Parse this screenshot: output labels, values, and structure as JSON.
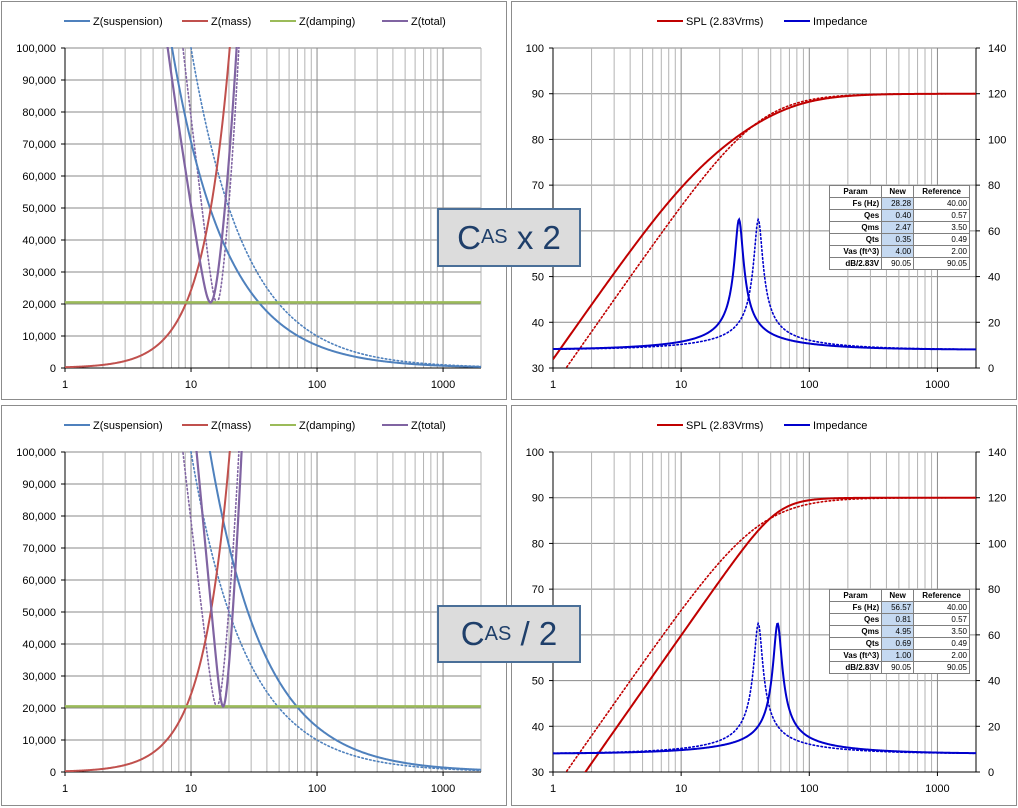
{
  "callouts": {
    "top": {
      "main": "C",
      "sub": "AS",
      "suffix": " x 2"
    },
    "bottom": {
      "main": "C",
      "sub": "AS",
      "suffix": " / 2"
    }
  },
  "tables": {
    "header": [
      "Param",
      "New",
      "Reference"
    ],
    "top": [
      [
        "Fs (Hz)",
        "28.28",
        "40.00"
      ],
      [
        "Qes",
        "0.40",
        "0.57"
      ],
      [
        "Qms",
        "2.47",
        "3.50"
      ],
      [
        "Qts",
        "0.35",
        "0.49"
      ],
      [
        "Vas (ft^3)",
        "4.00",
        "2.00"
      ],
      [
        "dB/2.83V",
        "90.05",
        "90.05"
      ]
    ],
    "bottom": [
      [
        "Fs (Hz)",
        "56.57",
        "40.00"
      ],
      [
        "Qes",
        "0.81",
        "0.57"
      ],
      [
        "Qms",
        "4.95",
        "3.50"
      ],
      [
        "Qts",
        "0.69",
        "0.49"
      ],
      [
        "Vas (ft^3)",
        "1.00",
        "2.00"
      ],
      [
        "dB/2.83V",
        "90.05",
        "90.05"
      ]
    ]
  },
  "chart_data": [
    {
      "type": "line",
      "panel": "impedance-top",
      "xscale": "log",
      "xlim": [
        1,
        2000
      ],
      "ylim": [
        0,
        100000
      ],
      "x_ticks": [
        "1",
        "10",
        "100",
        "1000"
      ],
      "y_ticks": [
        "0",
        "10,000",
        "20,000",
        "30,000",
        "40,000",
        "50,000",
        "60,000",
        "70,000",
        "80,000",
        "90,000",
        "100,000"
      ],
      "legend": [
        "Z(suspension)",
        "Z(mass)",
        "Z(damping)",
        "Z(total)"
      ],
      "legend_position": "top",
      "grid": true,
      "colors": {
        "suspension": "#4f81bd",
        "mass": "#c0504d",
        "damping": "#9bbb59",
        "total": "#8064a2"
      },
      "model": {
        "ks_new": 707000,
        "ks_ref": 1000000,
        "km": 243,
        "damping": 20500
      },
      "reference_style": "dotted"
    },
    {
      "type": "line",
      "panel": "spl-top",
      "xscale": "log",
      "xlim": [
        1,
        2000
      ],
      "ylim_left": [
        30,
        100
      ],
      "ylim_right": [
        0,
        140
      ],
      "x_ticks": [
        "1",
        "10",
        "100",
        "1000"
      ],
      "y_ticks_left": [
        "30",
        "40",
        "50",
        "60",
        "70",
        "80",
        "90",
        "100"
      ],
      "y_ticks_right": [
        "0",
        "20",
        "40",
        "60",
        "80",
        "100",
        "120",
        "140"
      ],
      "legend": [
        "SPL (2.83Vrms)",
        "Impedance"
      ],
      "legend_position": "top",
      "grid": true,
      "colors": {
        "spl": "#c00000",
        "impedance": "#0000cc"
      },
      "new": {
        "fs": 28.28,
        "qts": 0.35,
        "imp_base": 8,
        "imp_peak": 57
      },
      "reference": {
        "fs": 40.0,
        "qts": 0.49,
        "imp_base": 8,
        "imp_peak": 57
      },
      "spl_plateau": 90,
      "reference_style": "dotted"
    },
    {
      "type": "line",
      "panel": "impedance-bottom",
      "xscale": "log",
      "xlim": [
        1,
        2000
      ],
      "ylim": [
        0,
        100000
      ],
      "x_ticks": [
        "1",
        "10",
        "100",
        "1000"
      ],
      "y_ticks": [
        "0",
        "10,000",
        "20,000",
        "30,000",
        "40,000",
        "50,000",
        "60,000",
        "70,000",
        "80,000",
        "90,000",
        "100,000"
      ],
      "legend": [
        "Z(suspension)",
        "Z(mass)",
        "Z(damping)",
        "Z(total)"
      ],
      "legend_position": "top",
      "grid": true,
      "colors": {
        "suspension": "#4f81bd",
        "mass": "#c0504d",
        "damping": "#9bbb59",
        "total": "#8064a2"
      },
      "model": {
        "ks_new": 1414000,
        "ks_ref": 1000000,
        "km": 243,
        "damping": 20500
      },
      "reference_style": "dotted"
    },
    {
      "type": "line",
      "panel": "spl-bottom",
      "xscale": "log",
      "xlim": [
        1,
        2000
      ],
      "ylim_left": [
        30,
        100
      ],
      "ylim_right": [
        0,
        140
      ],
      "x_ticks": [
        "1",
        "10",
        "100",
        "1000"
      ],
      "y_ticks_left": [
        "30",
        "40",
        "50",
        "60",
        "70",
        "80",
        "90",
        "100"
      ],
      "y_ticks_right": [
        "0",
        "20",
        "40",
        "60",
        "80",
        "100",
        "120",
        "140"
      ],
      "legend": [
        "SPL (2.83Vrms)",
        "Impedance"
      ],
      "legend_position": "top",
      "grid": true,
      "colors": {
        "spl": "#c00000",
        "impedance": "#0000cc"
      },
      "new": {
        "fs": 56.57,
        "qts": 0.69,
        "imp_base": 8,
        "imp_peak": 57
      },
      "reference": {
        "fs": 40.0,
        "qts": 0.49,
        "imp_base": 8,
        "imp_peak": 57
      },
      "spl_plateau": 90,
      "reference_style": "dotted"
    }
  ]
}
